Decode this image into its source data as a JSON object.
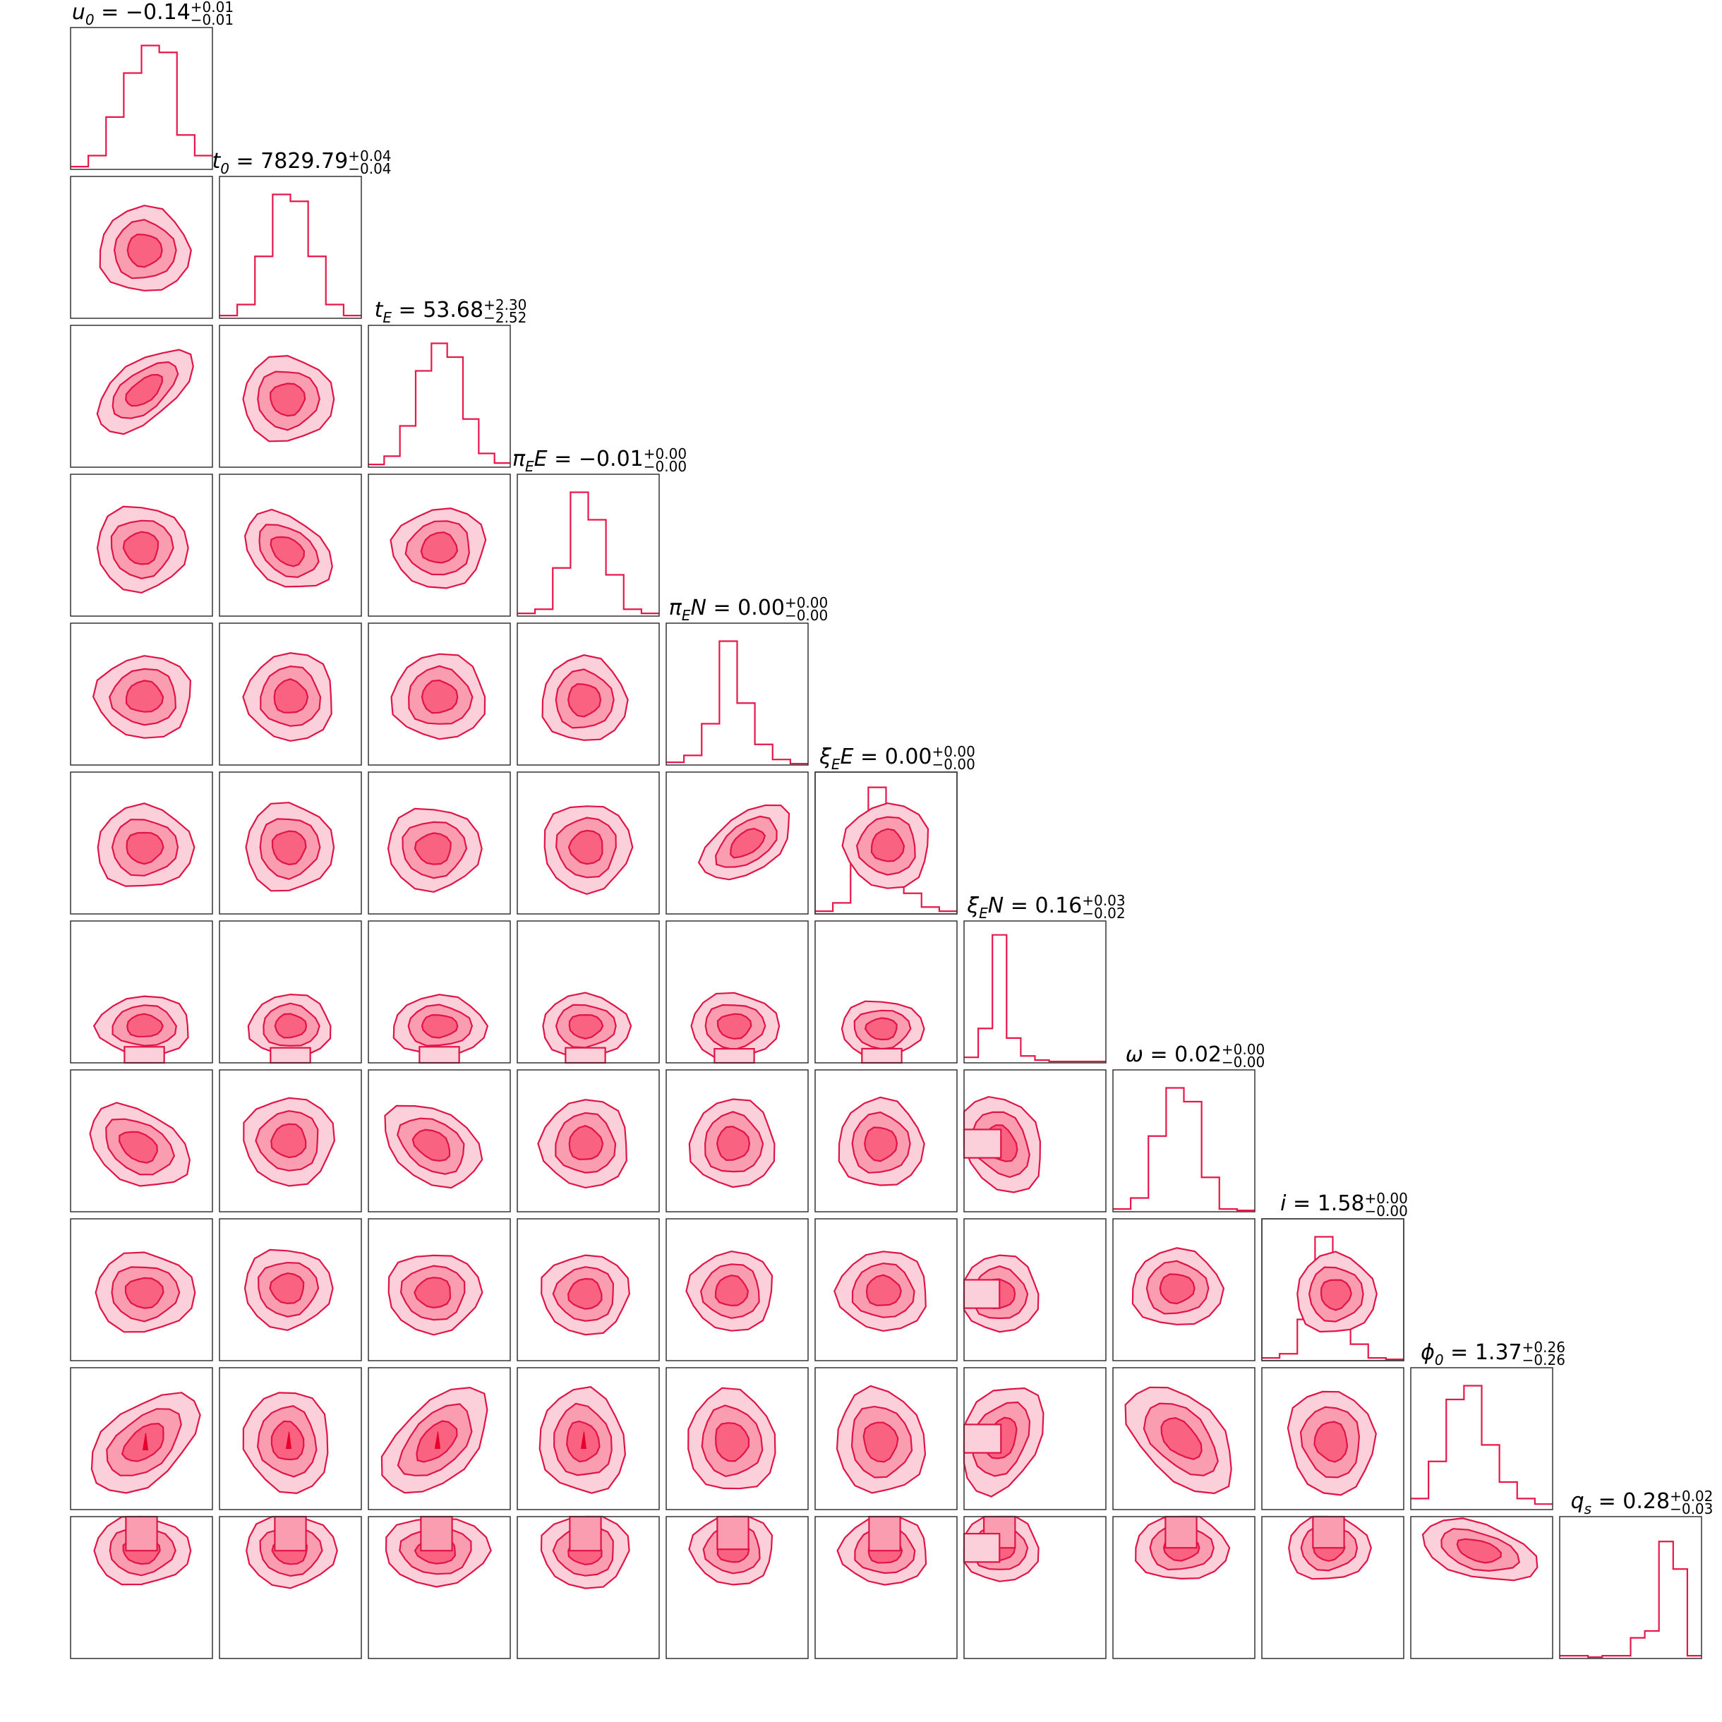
{
  "chart_data": {
    "type": "corner",
    "colors": {
      "hist": "#e8174a",
      "level1": "#fcd0da",
      "level2": "#fb9db1",
      "level3": "#fa6282",
      "edge": "#e01446"
    },
    "parameters": [
      {
        "key": "u0",
        "symbol": "u",
        "sub": "0",
        "value": "−0.14",
        "plus": "+0.01",
        "minus": "−0.01",
        "hist": [
          0.02,
          0.1,
          0.38,
          0.7,
          0.9,
          0.85,
          0.25,
          0.1
        ]
      },
      {
        "key": "t0",
        "symbol": "t",
        "sub": "0",
        "value": "7829.79",
        "plus": "+0.04",
        "minus": "−0.04",
        "hist": [
          0.02,
          0.1,
          0.45,
          0.9,
          0.85,
          0.45,
          0.1,
          0.02
        ]
      },
      {
        "key": "tE",
        "symbol": "t",
        "sub": "E",
        "value": "53.68",
        "plus": "+2.30",
        "minus": "−2.52",
        "hist": [
          0.02,
          0.08,
          0.3,
          0.7,
          0.9,
          0.8,
          0.35,
          0.1,
          0.03
        ]
      },
      {
        "key": "piEE",
        "symbol": "π",
        "sub": "E",
        "tail": "E",
        "value": "−0.01",
        "plus": "+0.00",
        "minus": "−0.00",
        "hist": [
          0.02,
          0.05,
          0.35,
          0.9,
          0.7,
          0.3,
          0.05,
          0.02
        ]
      },
      {
        "key": "piEN",
        "symbol": "π",
        "sub": "E",
        "tail": "N",
        "value": "0.00",
        "plus": "+0.00",
        "minus": "−0.00",
        "hist": [
          0.02,
          0.07,
          0.3,
          0.9,
          0.45,
          0.15,
          0.04,
          0.01
        ]
      },
      {
        "key": "xiEE",
        "symbol": "ξ",
        "sub": "E",
        "tail": "E",
        "value": "0.00",
        "plus": "+0.00",
        "minus": "−0.00",
        "hist": [
          0.02,
          0.08,
          0.4,
          0.92,
          0.45,
          0.15,
          0.05,
          0.02
        ]
      },
      {
        "key": "xiEN",
        "symbol": "ξ",
        "sub": "E",
        "tail": "N",
        "value": "0.16",
        "plus": "+0.03",
        "minus": "−0.02",
        "hist": [
          0.04,
          0.25,
          0.93,
          0.18,
          0.05,
          0.02,
          0.01,
          0.01,
          0.01,
          0.01
        ]
      },
      {
        "key": "omega",
        "symbol": "ω",
        "sub": "",
        "value": "0.02",
        "plus": "+0.00",
        "minus": "−0.00",
        "hist": [
          0.02,
          0.1,
          0.55,
          0.9,
          0.8,
          0.25,
          0.02,
          0.01
        ]
      },
      {
        "key": "i",
        "symbol": "i",
        "sub": "",
        "value": "1.58",
        "plus": "+0.00",
        "minus": "−0.00",
        "hist": [
          0.02,
          0.05,
          0.3,
          0.9,
          0.6,
          0.12,
          0.02,
          0.01
        ]
      },
      {
        "key": "phi0",
        "symbol": "ϕ",
        "sub": "0",
        "value": "1.37",
        "plus": "+0.26",
        "minus": "−0.26",
        "hist": [
          0.08,
          0.35,
          0.8,
          0.9,
          0.47,
          0.2,
          0.08,
          0.04
        ]
      },
      {
        "key": "qs",
        "symbol": "q",
        "sub": "s",
        "value": "0.28",
        "plus": "+0.02",
        "minus": "−0.03",
        "hist": [
          0.02,
          0.02,
          0.01,
          0.02,
          0.02,
          0.15,
          0.2,
          0.85,
          0.65,
          0.02
        ]
      }
    ],
    "contours": [
      {
        "row": 1,
        "col": 0,
        "cx": 0.52,
        "cy": 0.52,
        "rx": 0.32,
        "ry": 0.3,
        "rot": 0
      },
      {
        "row": 2,
        "col": 0,
        "cx": 0.52,
        "cy": 0.46,
        "rx": 0.4,
        "ry": 0.2,
        "rot": -38
      },
      {
        "row": 2,
        "col": 1,
        "cx": 0.48,
        "cy": 0.52,
        "rx": 0.32,
        "ry": 0.3,
        "rot": 0
      },
      {
        "row": 3,
        "col": 0,
        "cx": 0.5,
        "cy": 0.52,
        "rx": 0.32,
        "ry": 0.3,
        "rot": 0
      },
      {
        "row": 3,
        "col": 1,
        "cx": 0.48,
        "cy": 0.54,
        "rx": 0.34,
        "ry": 0.23,
        "rot": 35
      },
      {
        "row": 3,
        "col": 2,
        "cx": 0.5,
        "cy": 0.52,
        "rx": 0.33,
        "ry": 0.28,
        "rot": -10
      },
      {
        "row": 4,
        "col": 0,
        "cx": 0.52,
        "cy": 0.52,
        "rx": 0.34,
        "ry": 0.29,
        "rot": 0
      },
      {
        "row": 4,
        "col": 1,
        "cx": 0.5,
        "cy": 0.52,
        "rx": 0.31,
        "ry": 0.31,
        "rot": 0
      },
      {
        "row": 4,
        "col": 2,
        "cx": 0.5,
        "cy": 0.52,
        "rx": 0.33,
        "ry": 0.3,
        "rot": 0
      },
      {
        "row": 4,
        "col": 3,
        "cx": 0.47,
        "cy": 0.54,
        "rx": 0.3,
        "ry": 0.3,
        "rot": 0
      },
      {
        "row": 5,
        "col": 0,
        "cx": 0.52,
        "cy": 0.53,
        "rx": 0.34,
        "ry": 0.29,
        "rot": 0
      },
      {
        "row": 5,
        "col": 1,
        "cx": 0.49,
        "cy": 0.53,
        "rx": 0.31,
        "ry": 0.31,
        "rot": 0
      },
      {
        "row": 5,
        "col": 2,
        "cx": 0.46,
        "cy": 0.54,
        "rx": 0.33,
        "ry": 0.29,
        "rot": 0
      },
      {
        "row": 5,
        "col": 3,
        "cx": 0.49,
        "cy": 0.53,
        "rx": 0.31,
        "ry": 0.31,
        "rot": 0
      },
      {
        "row": 5,
        "col": 4,
        "cx": 0.57,
        "cy": 0.5,
        "rx": 0.36,
        "ry": 0.2,
        "rot": -35
      },
      {
        "row": 5,
        "col": 5,
        "cx": 0.51,
        "cy": 0.52,
        "rx": 0.3,
        "ry": 0.3,
        "rot": 0
      },
      {
        "row": 6,
        "col": 0,
        "cx": 0.52,
        "cy": 0.74,
        "rx": 0.33,
        "ry": 0.21,
        "rot": 0,
        "base": true
      },
      {
        "row": 6,
        "col": 1,
        "cx": 0.5,
        "cy": 0.74,
        "rx": 0.29,
        "ry": 0.22,
        "rot": 0,
        "base": true
      },
      {
        "row": 6,
        "col": 2,
        "cx": 0.5,
        "cy": 0.74,
        "rx": 0.33,
        "ry": 0.21,
        "rot": 0,
        "base": true
      },
      {
        "row": 6,
        "col": 3,
        "cx": 0.48,
        "cy": 0.74,
        "rx": 0.31,
        "ry": 0.22,
        "rot": 0,
        "base": true
      },
      {
        "row": 6,
        "col": 4,
        "cx": 0.48,
        "cy": 0.74,
        "rx": 0.31,
        "ry": 0.23,
        "rot": 0,
        "base": true
      },
      {
        "row": 6,
        "col": 5,
        "cx": 0.47,
        "cy": 0.76,
        "rx": 0.29,
        "ry": 0.2,
        "rot": 0,
        "base": true
      },
      {
        "row": 7,
        "col": 0,
        "cx": 0.48,
        "cy": 0.54,
        "rx": 0.38,
        "ry": 0.25,
        "rot": 30
      },
      {
        "row": 7,
        "col": 1,
        "cx": 0.49,
        "cy": 0.5,
        "rx": 0.32,
        "ry": 0.31,
        "rot": 0
      },
      {
        "row": 7,
        "col": 2,
        "cx": 0.45,
        "cy": 0.53,
        "rx": 0.37,
        "ry": 0.25,
        "rot": 32
      },
      {
        "row": 7,
        "col": 3,
        "cx": 0.48,
        "cy": 0.52,
        "rx": 0.31,
        "ry": 0.31,
        "rot": 0
      },
      {
        "row": 7,
        "col": 4,
        "cx": 0.47,
        "cy": 0.52,
        "rx": 0.3,
        "ry": 0.31,
        "rot": 0
      },
      {
        "row": 7,
        "col": 5,
        "cx": 0.46,
        "cy": 0.52,
        "rx": 0.3,
        "ry": 0.31,
        "rot": 0
      },
      {
        "row": 7,
        "col": 6,
        "cx": 0.26,
        "cy": 0.52,
        "rx": 0.36,
        "ry": 0.27,
        "rot": 58,
        "left": true
      },
      {
        "row": 8,
        "col": 0,
        "cx": 0.52,
        "cy": 0.52,
        "rx": 0.35,
        "ry": 0.28,
        "rot": 0
      },
      {
        "row": 8,
        "col": 1,
        "cx": 0.48,
        "cy": 0.49,
        "rx": 0.31,
        "ry": 0.28,
        "rot": 0
      },
      {
        "row": 8,
        "col": 2,
        "cx": 0.46,
        "cy": 0.52,
        "rx": 0.33,
        "ry": 0.28,
        "rot": 0
      },
      {
        "row": 8,
        "col": 3,
        "cx": 0.48,
        "cy": 0.53,
        "rx": 0.31,
        "ry": 0.28,
        "rot": 0
      },
      {
        "row": 8,
        "col": 4,
        "cx": 0.46,
        "cy": 0.51,
        "rx": 0.3,
        "ry": 0.28,
        "rot": 0
      },
      {
        "row": 8,
        "col": 5,
        "cx": 0.48,
        "cy": 0.51,
        "rx": 0.32,
        "ry": 0.28,
        "rot": 0
      },
      {
        "row": 8,
        "col": 6,
        "cx": 0.25,
        "cy": 0.53,
        "rx": 0.28,
        "ry": 0.27,
        "rot": 0,
        "left": true
      },
      {
        "row": 8,
        "col": 7,
        "cx": 0.45,
        "cy": 0.49,
        "rx": 0.32,
        "ry": 0.27,
        "rot": 0
      },
      {
        "row": 8,
        "col": 8,
        "cx": 0.52,
        "cy": 0.53,
        "rx": 0.28,
        "ry": 0.28,
        "rot": 0
      },
      {
        "row": 9,
        "col": 0,
        "cx": 0.52,
        "cy": 0.53,
        "rx": 0.45,
        "ry": 0.26,
        "rot": -40,
        "peak": 0.55
      },
      {
        "row": 9,
        "col": 1,
        "cx": 0.48,
        "cy": 0.52,
        "rx": 0.36,
        "ry": 0.3,
        "rot": 80,
        "peak": 0.48
      },
      {
        "row": 9,
        "col": 2,
        "cx": 0.48,
        "cy": 0.52,
        "rx": 0.46,
        "ry": 0.26,
        "rot": -45,
        "peak": 0.46
      },
      {
        "row": 9,
        "col": 3,
        "cx": 0.46,
        "cy": 0.52,
        "rx": 0.37,
        "ry": 0.3,
        "rot": 80,
        "peak": 0.46
      },
      {
        "row": 9,
        "col": 4,
        "cx": 0.46,
        "cy": 0.52,
        "rx": 0.36,
        "ry": 0.31,
        "rot": 80
      },
      {
        "row": 9,
        "col": 5,
        "cx": 0.46,
        "cy": 0.52,
        "rx": 0.37,
        "ry": 0.31,
        "rot": 80
      },
      {
        "row": 9,
        "col": 6,
        "cx": 0.26,
        "cy": 0.5,
        "rx": 0.4,
        "ry": 0.27,
        "rot": -65,
        "left": true
      },
      {
        "row": 9,
        "col": 7,
        "cx": 0.48,
        "cy": 0.5,
        "rx": 0.46,
        "ry": 0.27,
        "rot": 45
      },
      {
        "row": 9,
        "col": 8,
        "cx": 0.49,
        "cy": 0.52,
        "rx": 0.37,
        "ry": 0.3,
        "rot": 80
      },
      {
        "row": 10,
        "col": 0,
        "cx": 0.5,
        "cy": 0.24,
        "rx": 0.34,
        "ry": 0.24,
        "rot": 0,
        "top": true
      },
      {
        "row": 10,
        "col": 1,
        "cx": 0.5,
        "cy": 0.24,
        "rx": 0.32,
        "ry": 0.25,
        "rot": 0,
        "top": true
      },
      {
        "row": 10,
        "col": 2,
        "cx": 0.48,
        "cy": 0.24,
        "rx": 0.37,
        "ry": 0.24,
        "rot": 0,
        "top": true
      },
      {
        "row": 10,
        "col": 3,
        "cx": 0.48,
        "cy": 0.24,
        "rx": 0.31,
        "ry": 0.26,
        "rot": 0,
        "top": true
      },
      {
        "row": 10,
        "col": 4,
        "cx": 0.47,
        "cy": 0.23,
        "rx": 0.29,
        "ry": 0.25,
        "rot": 0,
        "top": true
      },
      {
        "row": 10,
        "col": 5,
        "cx": 0.49,
        "cy": 0.24,
        "rx": 0.31,
        "ry": 0.24,
        "rot": 0,
        "top": true
      },
      {
        "row": 10,
        "col": 6,
        "cx": 0.25,
        "cy": 0.22,
        "rx": 0.28,
        "ry": 0.24,
        "rot": 0,
        "left": true,
        "top": true
      },
      {
        "row": 10,
        "col": 7,
        "cx": 0.48,
        "cy": 0.22,
        "rx": 0.33,
        "ry": 0.23,
        "rot": 0,
        "top": true
      },
      {
        "row": 10,
        "col": 8,
        "cx": 0.47,
        "cy": 0.22,
        "rx": 0.29,
        "ry": 0.23,
        "rot": 0,
        "top": true
      },
      {
        "row": 10,
        "col": 9,
        "cx": 0.48,
        "cy": 0.24,
        "rx": 0.42,
        "ry": 0.19,
        "rot": 16
      }
    ]
  }
}
